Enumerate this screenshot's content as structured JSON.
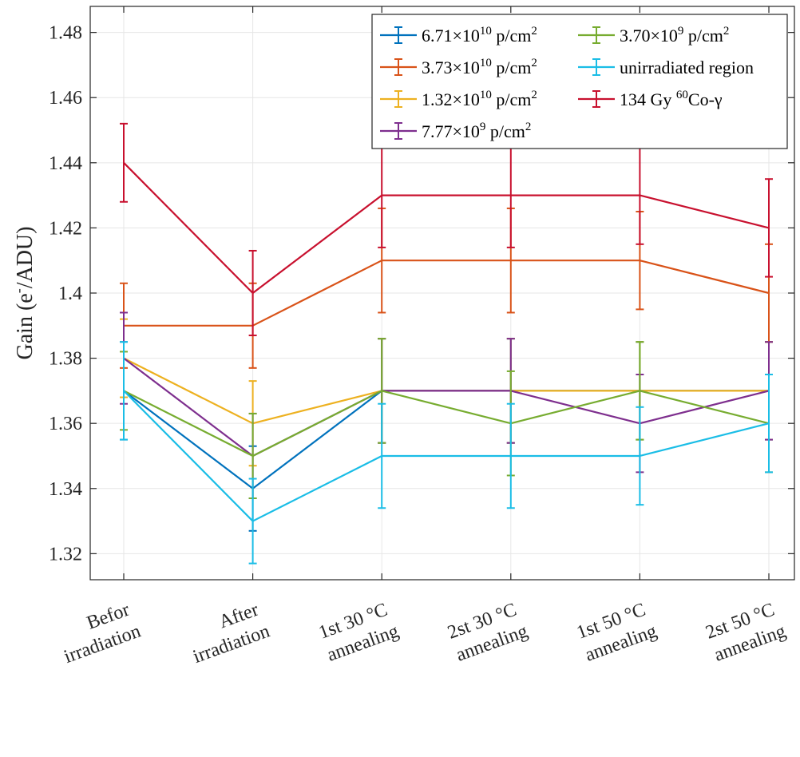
{
  "chart_data": {
    "type": "line",
    "title": "",
    "ylabel": "Gain (e⁻/ADU)",
    "ylabel_parts": {
      "pre": "Gain (e",
      "sup": "-",
      "post": "/ADU)"
    },
    "xlabel": "",
    "ylim": [
      1.312,
      1.488
    ],
    "yticks": [
      1.32,
      1.34,
      1.36,
      1.38,
      1.4,
      1.42,
      1.44,
      1.46,
      1.48
    ],
    "ytick_labels": [
      "1.32",
      "1.34",
      "1.36",
      "1.38",
      "1.4",
      "1.42",
      "1.44",
      "1.46",
      "1.48"
    ],
    "categories": [
      [
        "Befor",
        "irradiation"
      ],
      [
        "After",
        "irradiation"
      ],
      [
        "1st 30 °C",
        "annealing"
      ],
      [
        "2st 30 °C",
        "annealing"
      ],
      [
        "1st 50 °C",
        "annealing"
      ],
      [
        "2st 50 °C",
        "annealing"
      ]
    ],
    "grid": true,
    "legend_position": "top-right",
    "series": [
      {
        "name": "6.71×10^10 p/cm^2",
        "legend_parts": [
          [
            "6.71×10",
            ""
          ],
          [
            "10",
            "sup"
          ],
          [
            " p/cm",
            ""
          ],
          [
            "2",
            "sup"
          ]
        ],
        "color": "#0072BD",
        "values": [
          1.37,
          1.34,
          1.37,
          1.37,
          1.37,
          1.37
        ],
        "errors": [
          0.015,
          0.013,
          0.016,
          0.016,
          0.015,
          0.015
        ]
      },
      {
        "name": "3.73×10^10 p/cm^2",
        "legend_parts": [
          [
            "3.73×10",
            ""
          ],
          [
            "10",
            "sup"
          ],
          [
            " p/cm",
            ""
          ],
          [
            "2",
            "sup"
          ]
        ],
        "color": "#D95319",
        "values": [
          1.39,
          1.39,
          1.41,
          1.41,
          1.41,
          1.4
        ],
        "errors": [
          0.013,
          0.013,
          0.016,
          0.016,
          0.015,
          0.015
        ]
      },
      {
        "name": "1.32×10^10 p/cm^2",
        "legend_parts": [
          [
            "1.32×10",
            ""
          ],
          [
            "10",
            "sup"
          ],
          [
            " p/cm",
            ""
          ],
          [
            "2",
            "sup"
          ]
        ],
        "color": "#EDB120",
        "values": [
          1.38,
          1.36,
          1.37,
          1.37,
          1.37,
          1.37
        ],
        "errors": [
          0.012,
          0.013,
          0.016,
          0.016,
          0.015,
          0.015
        ]
      },
      {
        "name": "7.77×10^9 p/cm^2",
        "legend_parts": [
          [
            "7.77×10",
            ""
          ],
          [
            "9",
            "sup"
          ],
          [
            " p/cm",
            ""
          ],
          [
            "2",
            "sup"
          ]
        ],
        "color": "#7E2F8E",
        "values": [
          1.38,
          1.35,
          1.37,
          1.37,
          1.36,
          1.37
        ],
        "errors": [
          0.014,
          0.013,
          0.016,
          0.016,
          0.015,
          0.015
        ]
      },
      {
        "name": "3.70×10^9 p/cm^2",
        "legend_parts": [
          [
            "3.70×10",
            ""
          ],
          [
            "9",
            "sup"
          ],
          [
            " p/cm",
            ""
          ],
          [
            "2",
            "sup"
          ]
        ],
        "color": "#77AC30",
        "values": [
          1.37,
          1.35,
          1.37,
          1.36,
          1.37,
          1.36
        ],
        "errors": [
          0.012,
          0.013,
          0.016,
          0.016,
          0.015,
          0.015
        ]
      },
      {
        "name": "unirradiated region",
        "legend_parts": [
          [
            "unirradiated region",
            ""
          ]
        ],
        "color": "#1ABDE6",
        "values": [
          1.37,
          1.33,
          1.35,
          1.35,
          1.35,
          1.36
        ],
        "errors": [
          0.015,
          0.013,
          0.016,
          0.016,
          0.015,
          0.015
        ]
      },
      {
        "name": "134 Gy 60Co-γ",
        "legend_parts": [
          [
            "134 Gy ",
            ""
          ],
          [
            "60",
            "sup"
          ],
          [
            "Co-γ",
            ""
          ]
        ],
        "color": "#C8102E",
        "values": [
          1.44,
          1.4,
          1.43,
          1.43,
          1.43,
          1.42
        ],
        "errors": [
          0.012,
          0.013,
          0.016,
          0.016,
          0.015,
          0.015
        ]
      }
    ],
    "legend_order": [
      0,
      4,
      1,
      5,
      2,
      6,
      3
    ]
  }
}
